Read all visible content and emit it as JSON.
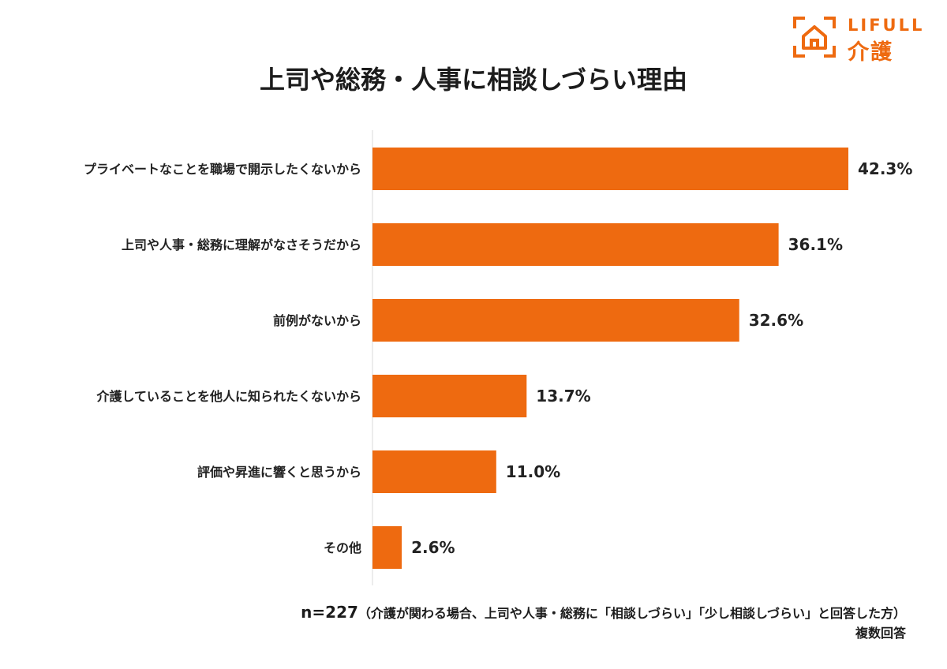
{
  "brand": {
    "name_top": "LIFULL",
    "name_bottom": "介護",
    "color": "#ee6a10",
    "icon": "house-bracket-logo-icon"
  },
  "chart_data": {
    "type": "bar",
    "orientation": "horizontal",
    "title": "上司や総務・人事に相談しづらい理由",
    "categories": [
      "プライベートなことを職場で開示したくないから",
      "上司や人事・総務に理解がなさそうだから",
      "前例がないから",
      "介護していることを他人に知られたくないから",
      "評価や昇進に響くと思うから",
      "その他"
    ],
    "values": [
      42.3,
      36.1,
      32.6,
      13.7,
      11.0,
      2.6
    ],
    "data_labels": [
      "42.3%",
      "36.1%",
      "32.6%",
      "13.7%",
      "11.0%",
      "2.6%"
    ],
    "unit": "%",
    "xlim": [
      0,
      45
    ],
    "bar_color": "#ee6a10",
    "grid": false,
    "legend": "none"
  },
  "footnote": {
    "n_label": "n=227",
    "condition": "（介護が関わる場合、上司や人事・総務に「相談しづらい」「少し相談しづらい」と回答した方）",
    "answer_type": "複数回答"
  }
}
